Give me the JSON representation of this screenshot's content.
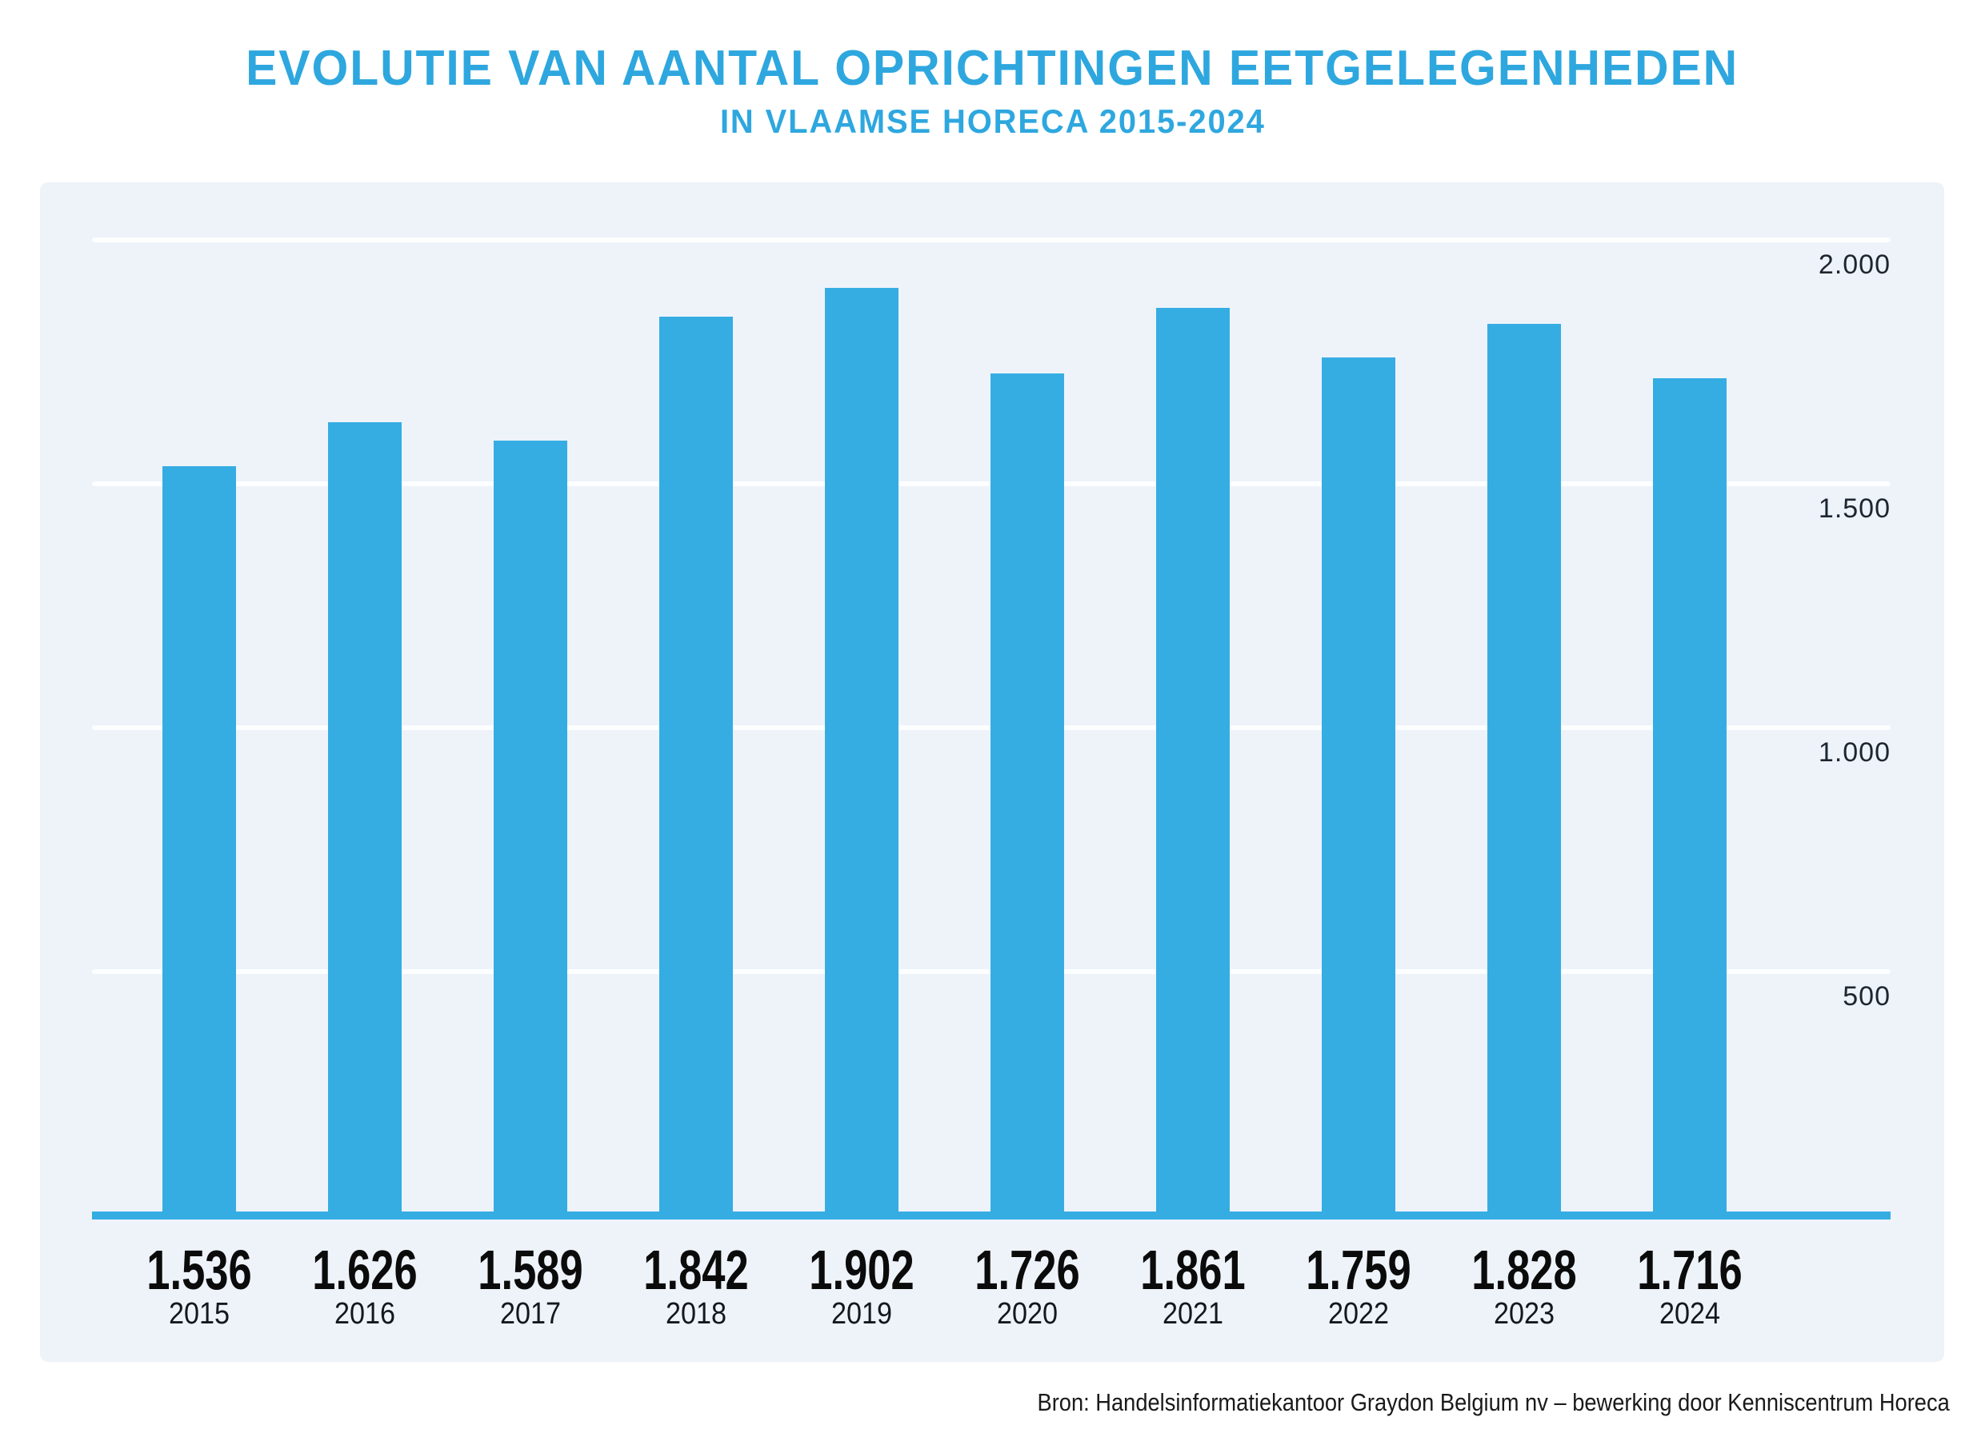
{
  "header": {
    "title": "EVOLUTIE VAN AANTAL OPRICHTINGEN EETGELEGENHEDEN",
    "subtitle": "IN VLAAMSE HORECA 2015-2024"
  },
  "footer": {
    "source": "Bron: Handelsinformatiekantoor Graydon Belgium nv – bewerking door Kenniscentrum Horeca"
  },
  "colors": {
    "accent_blue": "#35ADE3",
    "title_blue": "#2EA7DF",
    "panel_background": "#EEF3FA",
    "gridline_white": "#FFFFFF",
    "value_label_dark": "#0B0B0B"
  },
  "chart_data": {
    "type": "bar",
    "title": "EVOLUTIE VAN AANTAL OPRICHTINGEN EETGELEGENHEDEN",
    "subtitle": "IN VLAAMSE HORECA 2015-2024",
    "categories": [
      "2015",
      "2016",
      "2017",
      "2018",
      "2019",
      "2020",
      "2021",
      "2022",
      "2023",
      "2024"
    ],
    "values": [
      1536,
      1626,
      1589,
      1842,
      1902,
      1726,
      1861,
      1759,
      1828,
      1716
    ],
    "value_labels": [
      "1.536",
      "1.626",
      "1.589",
      "1.842",
      "1.902",
      "1.726",
      "1.861",
      "1.759",
      "1.828",
      "1.716"
    ],
    "xlabel": "",
    "ylabel": "",
    "ylim": [
      0,
      2100
    ],
    "y_ticks": [
      {
        "value": 2000,
        "label": "2.000"
      },
      {
        "value": 1500,
        "label": "1.500"
      },
      {
        "value": 1000,
        "label": "1.000"
      },
      {
        "value": 500,
        "label": "500"
      }
    ],
    "grid": true,
    "legend": false,
    "bar_color": "#35ADE3",
    "source": "Bron: Handelsinformatiekantoor Graydon Belgium nv – bewerking door Kenniscentrum Horeca"
  }
}
